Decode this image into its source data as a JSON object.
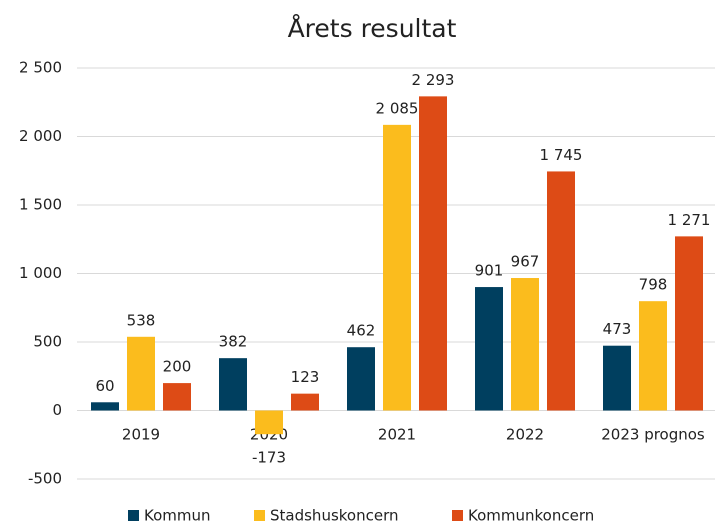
{
  "chart_data": {
    "type": "bar",
    "title": "Årets resultat",
    "categories": [
      "2019",
      "2020",
      "2021",
      "2022",
      "2023 prognos"
    ],
    "series": [
      {
        "name": "Kommun",
        "color": "#003f5f",
        "values": [
          60,
          382,
          462,
          901,
          473
        ]
      },
      {
        "name": "Stadshuskoncern",
        "color": "#fbbc1d",
        "values": [
          538,
          -173,
          2085,
          967,
          798
        ],
        "value_labels": [
          "538",
          "-173",
          "2 085",
          "967",
          "798"
        ]
      },
      {
        "name": "Kommunkoncern",
        "color": "#dd4b16",
        "values": [
          200,
          123,
          2293,
          1745,
          1271
        ],
        "value_labels": [
          "200",
          "123",
          "2 293",
          "1 745",
          "1 271"
        ]
      }
    ],
    "ylim": [
      -500,
      2500
    ],
    "yticks": [
      -500,
      0,
      500,
      {
        "value": 1000,
        "label": "1 000"
      },
      {
        "value": 1500,
        "label": "1 500"
      },
      {
        "value": 2000,
        "label": "2 000"
      },
      {
        "value": 2500,
        "label": "2 500"
      }
    ],
    "grid": true,
    "legend": "bottom"
  }
}
